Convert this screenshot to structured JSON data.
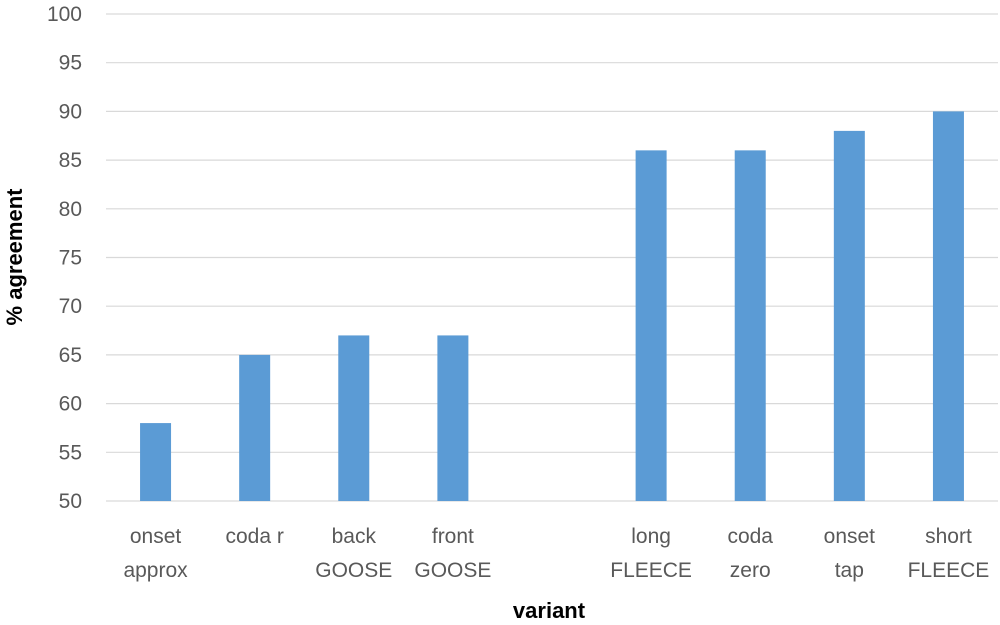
{
  "chart_data": {
    "type": "bar",
    "categories": [
      [
        "onset",
        "approx"
      ],
      [
        "coda r"
      ],
      [
        "back",
        "GOOSE"
      ],
      [
        "front",
        "GOOSE"
      ],
      [
        ""
      ],
      [
        "long",
        "FLEECE"
      ],
      [
        "coda",
        "zero"
      ],
      [
        "onset",
        "tap"
      ],
      [
        "short",
        "FLEECE"
      ]
    ],
    "values": [
      58,
      65,
      67,
      67,
      null,
      86,
      86,
      88,
      90
    ],
    "title": "",
    "xlabel": "variant",
    "ylabel": "% agreement",
    "ylim": [
      50,
      100
    ],
    "yticks": [
      50,
      55,
      60,
      65,
      70,
      75,
      80,
      85,
      90,
      95,
      100
    ],
    "grid": true,
    "bar_color": "#5b9bd5",
    "grid_color": "#d9d9d9"
  }
}
